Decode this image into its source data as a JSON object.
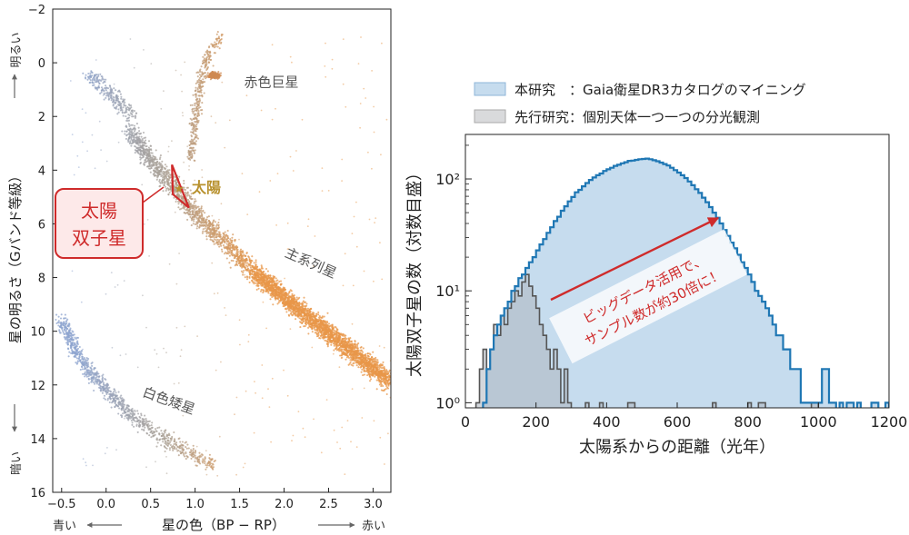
{
  "chart_data": [
    {
      "type": "scatter",
      "xlabel": "星の色（BP − RP）",
      "ylabel": "星の明るさ（Gバンド等級）",
      "xlim": [
        -0.6,
        3.2
      ],
      "ylim": [
        16,
        -2
      ],
      "y_inverted": true,
      "grid": false,
      "x_ticks": [
        "−0.5",
        "0.0",
        "0.5",
        "1.0",
        "1.5",
        "2.0",
        "2.5",
        "3.0"
      ],
      "x_tick_values": [
        -0.5,
        0.0,
        0.5,
        1.0,
        1.5,
        2.0,
        2.5,
        3.0
      ],
      "y_ticks": [
        "−2",
        "0",
        "2",
        "4",
        "6",
        "8",
        "10",
        "12",
        "14",
        "16"
      ],
      "y_tick_values": [
        -2,
        0,
        2,
        4,
        6,
        8,
        10,
        12,
        14,
        16
      ],
      "y_top_hint": "明るい",
      "y_bottom_hint": "暗い",
      "x_left_hint": "青い",
      "x_right_hint": "赤い",
      "region_labels": [
        {
          "text": "赤色巨星",
          "x": 1.55,
          "y": 0.9
        },
        {
          "text": "主系列星",
          "x": 2.0,
          "y": 7.2
        },
        {
          "text": "白色矮星",
          "x": 0.4,
          "y": 12.4
        }
      ],
      "sun_label": "太陽",
      "sun_point": {
        "x": 0.82,
        "y": 4.67
      },
      "callout_text": [
        "太陽",
        "双子星"
      ],
      "twin_region": [
        [
          0.74,
          3.8
        ],
        [
          0.93,
          5.4
        ],
        [
          0.75,
          4.9
        ]
      ],
      "sequences": {
        "main_sequence": [
          [
            0.25,
            2.5
          ],
          [
            0.5,
            3.6
          ],
          [
            0.75,
            4.6
          ],
          [
            1.0,
            5.6
          ],
          [
            1.3,
            6.6
          ],
          [
            1.7,
            7.9
          ],
          [
            2.2,
            9.3
          ],
          [
            2.7,
            10.6
          ],
          [
            3.2,
            11.9
          ]
        ],
        "red_giant_branch": [
          [
            0.95,
            3.6
          ],
          [
            1.0,
            2.2
          ],
          [
            1.05,
            0.9
          ],
          [
            1.15,
            -0.3
          ],
          [
            1.3,
            -1.0
          ]
        ],
        "red_clump": [
          [
            1.18,
            0.45
          ]
        ],
        "blue_branch": [
          [
            -0.2,
            0.4
          ],
          [
            0.0,
            1.0
          ],
          [
            0.3,
            2.0
          ]
        ],
        "white_dwarfs": [
          [
            -0.5,
            9.6
          ],
          [
            -0.3,
            11.0
          ],
          [
            0.0,
            12.2
          ],
          [
            0.3,
            13.2
          ],
          [
            0.7,
            14.1
          ],
          [
            1.2,
            15.0
          ]
        ]
      },
      "colors": {
        "blue": "#8ea4cf",
        "gray": "#a8a29a",
        "orange": "#e8974a",
        "red": "#cf2b2b",
        "sun": "#b8912e",
        "label": "#555555"
      }
    },
    {
      "type": "histogram",
      "xlabel": "太陽系からの距離（光年）",
      "ylabel": "太陽双子星の数（対数目盛）",
      "yscale": "log",
      "xlim": [
        0,
        1200
      ],
      "ylim": [
        0.9,
        250
      ],
      "x_ticks": [
        "0",
        "200",
        "400",
        "600",
        "800",
        "1000",
        "1200"
      ],
      "x_tick_values": [
        0,
        200,
        400,
        600,
        800,
        1000,
        1200
      ],
      "y_ticks": [
        "10⁰",
        "10¹",
        "10²"
      ],
      "y_tick_values": [
        1,
        10,
        100
      ],
      "bin_width": 10,
      "legend_position": "top-center",
      "series": [
        {
          "name": "本研究　：Gaia衛星DR3カタログのマイニング",
          "color": "#1f77b4",
          "fill": "#c6dcee",
          "bins": [
            [
              50,
              1
            ],
            [
              60,
              2
            ],
            [
              70,
              3
            ],
            [
              80,
              4
            ],
            [
              90,
              5
            ],
            [
              100,
              6
            ],
            [
              110,
              7
            ],
            [
              120,
              8
            ],
            [
              130,
              10
            ],
            [
              140,
              11
            ],
            [
              150,
              13
            ],
            [
              160,
              14
            ],
            [
              170,
              16
            ],
            [
              180,
              18
            ],
            [
              190,
              20
            ],
            [
              200,
              23
            ],
            [
              210,
              26
            ],
            [
              220,
              29
            ],
            [
              230,
              33
            ],
            [
              240,
              37
            ],
            [
              250,
              42
            ],
            [
              260,
              46
            ],
            [
              270,
              52
            ],
            [
              280,
              57
            ],
            [
              290,
              63
            ],
            [
              300,
              69
            ],
            [
              310,
              76
            ],
            [
              320,
              80
            ],
            [
              330,
              86
            ],
            [
              340,
              92
            ],
            [
              350,
              98
            ],
            [
              360,
              103
            ],
            [
              370,
              108
            ],
            [
              380,
              112
            ],
            [
              390,
              118
            ],
            [
              400,
              122
            ],
            [
              410,
              126
            ],
            [
              420,
              131
            ],
            [
              430,
              134
            ],
            [
              440,
              138
            ],
            [
              450,
              141
            ],
            [
              460,
              145
            ],
            [
              470,
              146
            ],
            [
              480,
              148
            ],
            [
              490,
              150
            ],
            [
              500,
              151
            ],
            [
              510,
              152
            ],
            [
              520,
              150
            ],
            [
              530,
              147
            ],
            [
              540,
              144
            ],
            [
              550,
              140
            ],
            [
              560,
              136
            ],
            [
              570,
              132
            ],
            [
              580,
              126
            ],
            [
              590,
              120
            ],
            [
              600,
              114
            ],
            [
              610,
              108
            ],
            [
              620,
              102
            ],
            [
              630,
              95
            ],
            [
              640,
              88
            ],
            [
              650,
              81
            ],
            [
              660,
              75
            ],
            [
              670,
              68
            ],
            [
              680,
              62
            ],
            [
              690,
              56
            ],
            [
              700,
              50
            ],
            [
              710,
              45
            ],
            [
              720,
              40
            ],
            [
              730,
              35
            ],
            [
              740,
              31
            ],
            [
              750,
              27
            ],
            [
              760,
              24
            ],
            [
              770,
              21
            ],
            [
              780,
              18
            ],
            [
              790,
              16
            ],
            [
              800,
              14
            ],
            [
              810,
              12
            ],
            [
              820,
              10
            ],
            [
              830,
              9
            ],
            [
              840,
              8
            ],
            [
              850,
              7
            ],
            [
              860,
              6
            ],
            [
              870,
              5
            ],
            [
              880,
              4
            ],
            [
              890,
              4
            ],
            [
              900,
              3
            ],
            [
              910,
              3
            ],
            [
              920,
              2
            ],
            [
              930,
              2
            ],
            [
              940,
              2
            ],
            [
              950,
              1
            ],
            [
              960,
              1
            ],
            [
              970,
              1
            ],
            [
              980,
              1
            ],
            [
              990,
              1
            ],
            [
              1000,
              1
            ],
            [
              1010,
              2
            ],
            [
              1020,
              2
            ],
            [
              1030,
              1
            ],
            [
              1040,
              1
            ],
            [
              1060,
              1
            ],
            [
              1080,
              1
            ],
            [
              1090,
              1
            ],
            [
              1110,
              1
            ],
            [
              1150,
              1
            ],
            [
              1160,
              1
            ],
            [
              1190,
              1
            ]
          ]
        },
        {
          "name": "先行研究：個別天体一つ一つの分光観測",
          "color": "#555555",
          "fill": "#c4c7cc",
          "bins": [
            [
              30,
              1
            ],
            [
              40,
              2
            ],
            [
              50,
              3
            ],
            [
              60,
              2
            ],
            [
              70,
              3
            ],
            [
              80,
              5
            ],
            [
              90,
              4
            ],
            [
              100,
              6
            ],
            [
              110,
              5
            ],
            [
              120,
              7
            ],
            [
              130,
              8
            ],
            [
              140,
              10
            ],
            [
              150,
              9
            ],
            [
              160,
              12
            ],
            [
              170,
              14
            ],
            [
              180,
              11
            ],
            [
              190,
              9
            ],
            [
              200,
              7
            ],
            [
              210,
              5
            ],
            [
              220,
              4
            ],
            [
              230,
              3
            ],
            [
              240,
              2
            ],
            [
              250,
              3
            ],
            [
              260,
              2
            ],
            [
              270,
              1
            ],
            [
              280,
              2
            ],
            [
              290,
              1
            ],
            [
              340,
              1
            ],
            [
              380,
              1
            ],
            [
              460,
              1
            ],
            [
              470,
              1
            ],
            [
              700,
              1
            ],
            [
              800,
              1
            ],
            [
              830,
              1
            ],
            [
              840,
              1
            ],
            [
              980,
              1
            ],
            [
              990,
              1
            ]
          ]
        }
      ],
      "annotation": [
        "ビッグデータ活用で、",
        "サンプル数が約30倍に！"
      ],
      "annotation_color": "#cf2b2b"
    }
  ]
}
